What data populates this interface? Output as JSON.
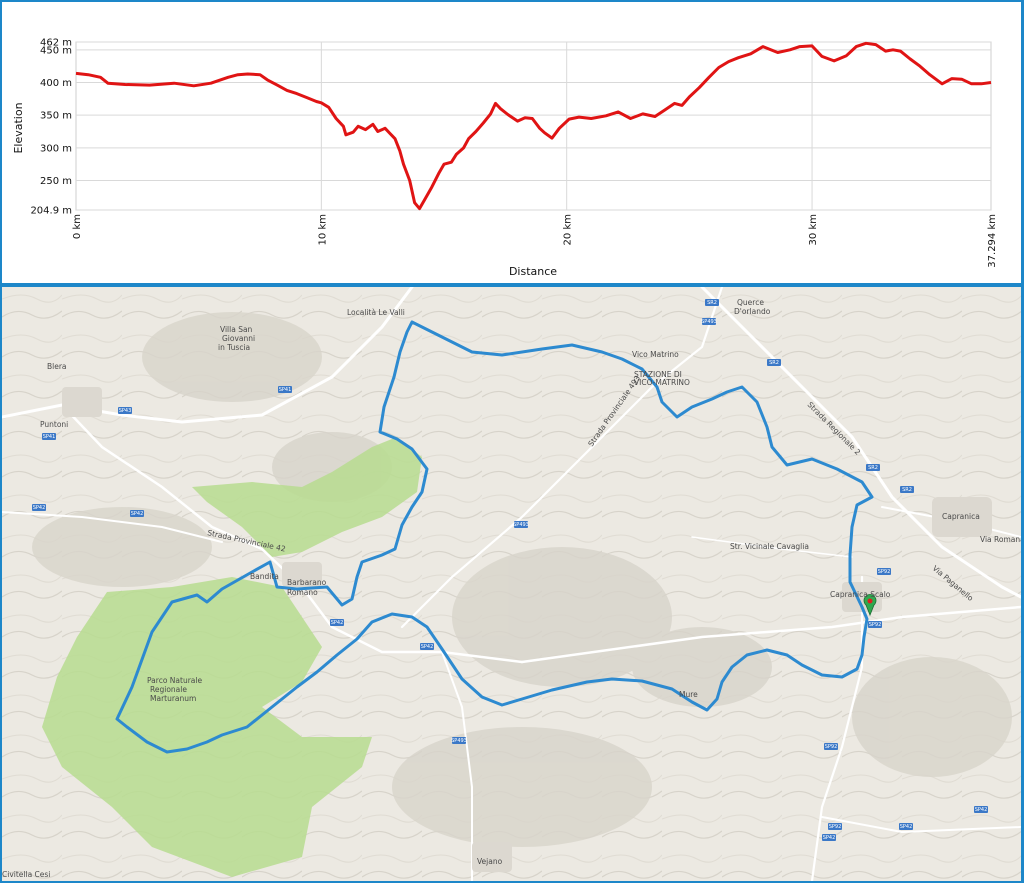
{
  "chart_data": {
    "type": "line",
    "xlabel": "Distance",
    "ylabel": "Elevation",
    "x_ticks": [
      "0 km",
      "10 km",
      "20 km",
      "30 km",
      "37.294 km"
    ],
    "x_tick_values": [
      0,
      10,
      20,
      30,
      37.294
    ],
    "y_ticks": [
      "462 m",
      "450 m",
      "400 m",
      "350 m",
      "300 m",
      "250 m",
      "204.9 m"
    ],
    "y_tick_values": [
      462,
      450,
      400,
      350,
      300,
      250,
      204.9
    ],
    "xlim": [
      0,
      37.294
    ],
    "ylim": [
      204.9,
      462
    ],
    "grid": true,
    "color": "#e01414",
    "series": [
      {
        "x": [
          0,
          0.5,
          1.0,
          1.3,
          2.0,
          3.0,
          4.0,
          4.8,
          5.5,
          6.2,
          6.6,
          7.0,
          7.5,
          7.8,
          8.2,
          8.6,
          9.0,
          9.4,
          9.8,
          10.0,
          10.3,
          10.6,
          10.9,
          11.0,
          11.3,
          11.5,
          11.8,
          12.1,
          12.3,
          12.6,
          12.8,
          13.0,
          13.2,
          13.35,
          13.6,
          13.8,
          14.0,
          14.2,
          14.5,
          14.8,
          15.0,
          15.3,
          15.5,
          15.8,
          16.0,
          16.3,
          16.6,
          16.9,
          17.1,
          17.3,
          17.6,
          18.0,
          18.3,
          18.6,
          18.9,
          19.1,
          19.4,
          19.7,
          20.1,
          20.5,
          21.0,
          21.6,
          22.1,
          22.6,
          23.1,
          23.6,
          24.0,
          24.4,
          24.7,
          25.0,
          25.4,
          25.8,
          26.2,
          26.6,
          27.0,
          27.5,
          28.0,
          28.6,
          29.1,
          29.5,
          30.0,
          30.4,
          30.9,
          31.4,
          31.8,
          32.2,
          32.6,
          33.0,
          33.3,
          33.6,
          34.0,
          34.4,
          34.8,
          35.3,
          35.7,
          36.1,
          36.5,
          36.9,
          37.294
        ],
        "y": [
          414,
          412,
          408,
          399,
          397,
          396,
          399,
          395,
          399,
          408,
          412,
          413,
          412,
          404,
          396,
          388,
          383,
          377,
          371,
          369,
          362,
          345,
          333,
          320,
          324,
          333,
          328,
          336,
          325,
          330,
          322,
          314,
          295,
          275,
          250,
          216,
          207,
          220,
          240,
          262,
          275,
          278,
          290,
          300,
          314,
          325,
          338,
          352,
          368,
          360,
          351,
          341,
          346,
          345,
          330,
          323,
          315,
          330,
          344,
          347,
          345,
          349,
          355,
          345,
          352,
          348,
          358,
          368,
          365,
          378,
          392,
          408,
          423,
          432,
          438,
          444,
          455,
          446,
          450,
          455,
          456,
          440,
          433,
          441,
          455,
          460,
          458,
          448,
          450,
          448,
          436,
          425,
          412,
          398,
          406,
          405,
          398,
          398,
          400
        ]
      }
    ]
  },
  "map": {
    "labels": [
      {
        "id": "vilsan",
        "text": "Villa San"
      },
      {
        "id": "giov",
        "text": "Giovanni"
      },
      {
        "id": "tusc",
        "text": "in Tuscia"
      },
      {
        "id": "bleraA",
        "text": "Blera"
      },
      {
        "id": "puntoni",
        "text": "Puntoni"
      },
      {
        "id": "loc",
        "text": "Località Le Valli"
      },
      {
        "id": "querce",
        "text": "Querce"
      },
      {
        "id": "dorl",
        "text": "D'orlando"
      },
      {
        "id": "vico",
        "text": "Vico Matrino"
      },
      {
        "id": "staz",
        "text": "STAZIONE DI"
      },
      {
        "id": "staz2",
        "text": "VICO-MATRINO"
      },
      {
        "id": "caprA",
        "text": "Capranica"
      },
      {
        "id": "caprscalo",
        "text": "Capranica Scalo"
      },
      {
        "id": "bandita",
        "text": "Bandita"
      },
      {
        "id": "barbarano",
        "text": "Barbarano"
      },
      {
        "id": "romano",
        "text": "Romano"
      },
      {
        "id": "parco1",
        "text": "Parco Naturale"
      },
      {
        "id": "parco2",
        "text": "Regionale"
      },
      {
        "id": "parco3",
        "text": "Marturanum"
      },
      {
        "id": "mure",
        "text": "Mure"
      },
      {
        "id": "vejano",
        "text": "Vejano"
      },
      {
        "id": "civitella",
        "text": "Civitella Cesi"
      },
      {
        "id": "strada42",
        "text": "Strada Provinciale 42"
      },
      {
        "id": "strada493",
        "text": "Strada Provinciale 493"
      },
      {
        "id": "strreg2",
        "text": "Strada Regionale 2"
      },
      {
        "id": "strvic",
        "text": "Str. Vicinale Cavaglia"
      },
      {
        "id": "viaromana",
        "text": "Via Romana"
      },
      {
        "id": "viapaganello",
        "text": "Via Paganello"
      }
    ],
    "roads": [
      {
        "id": "r1",
        "text": "SP43"
      },
      {
        "id": "r2",
        "text": "SP41"
      },
      {
        "id": "r3",
        "text": "SP41"
      },
      {
        "id": "r4",
        "text": "SP42"
      },
      {
        "id": "r5",
        "text": "SP42"
      },
      {
        "id": "r6",
        "text": "SP42"
      },
      {
        "id": "r7",
        "text": "SP42"
      },
      {
        "id": "r8",
        "text": "SR2"
      },
      {
        "id": "r9",
        "text": "SP493"
      },
      {
        "id": "r10",
        "text": "SR2"
      },
      {
        "id": "r11",
        "text": "SP493"
      },
      {
        "id": "r12",
        "text": "SR2"
      },
      {
        "id": "r13",
        "text": "SR2"
      },
      {
        "id": "r14",
        "text": "SP92"
      },
      {
        "id": "r15",
        "text": "SP92"
      },
      {
        "id": "r16",
        "text": "SP493"
      },
      {
        "id": "r17",
        "text": "SP92"
      },
      {
        "id": "r18",
        "text": "SP92"
      },
      {
        "id": "r19",
        "text": "SP42"
      },
      {
        "id": "r20",
        "text": "SP42"
      },
      {
        "id": "r21",
        "text": "SP42"
      }
    ]
  }
}
